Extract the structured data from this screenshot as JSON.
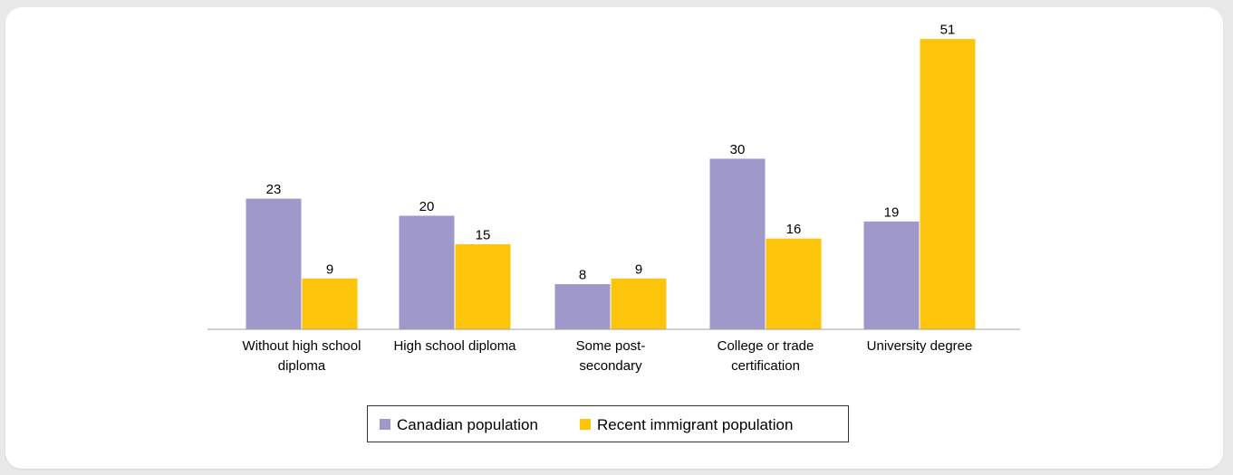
{
  "colors": {
    "card_background": "#ffffff",
    "page_background": "#e9e9e9",
    "axis": "#a0a0a0"
  },
  "chart_data": {
    "type": "bar",
    "title": "",
    "xlabel": "",
    "ylabel": "",
    "ylim": [
      0,
      53
    ],
    "grid": false,
    "legend_position": "bottom-center",
    "categories": [
      [
        "Without high school",
        "diploma"
      ],
      [
        "High school diploma"
      ],
      [
        "Some post-",
        "secondary"
      ],
      [
        "College or trade",
        "certification"
      ],
      [
        "University degree"
      ]
    ],
    "series": [
      {
        "name": "Canadian population",
        "color": "#9e98cb",
        "values": [
          23,
          20,
          8,
          30,
          19
        ]
      },
      {
        "name": "Recent immigrant population",
        "color": "#fcc50b",
        "values": [
          9,
          15,
          9,
          16,
          51
        ]
      }
    ]
  }
}
